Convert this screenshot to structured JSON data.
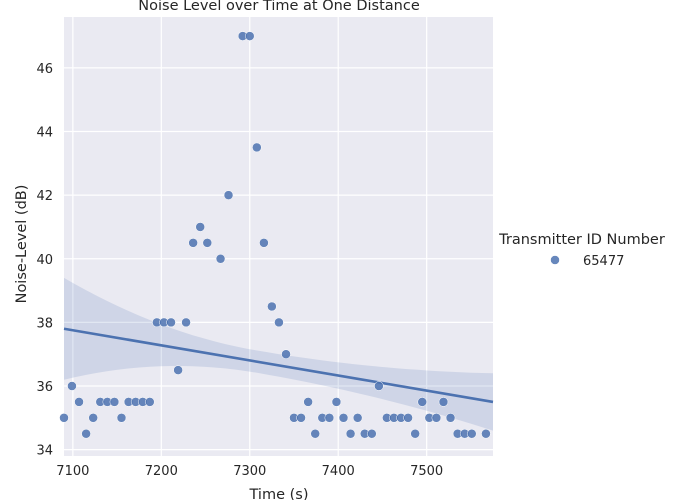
{
  "chart_data": {
    "type": "scatter",
    "title": "Noise Level over Time at One Distance",
    "xlabel": "Time (s)",
    "ylabel": "Noise-Level (dB)",
    "xlim": [
      7090,
      7575
    ],
    "ylim": [
      33.8,
      47.6
    ],
    "xticks": [
      7100,
      7200,
      7300,
      7400,
      7500
    ],
    "yticks": [
      34,
      36,
      38,
      40,
      42,
      44,
      46
    ],
    "grid": true,
    "legend": {
      "title": "Transmitter ID Number",
      "placement": "right",
      "entries": [
        "65477"
      ]
    },
    "series": [
      {
        "name": "65477",
        "color": "#4c72b0",
        "x": [
          7090,
          7099,
          7107,
          7115,
          7123,
          7131,
          7139,
          7147,
          7155,
          7163,
          7171,
          7179,
          7187,
          7195,
          7203,
          7211,
          7219,
          7228,
          7236,
          7244,
          7252,
          7267,
          7276,
          7292,
          7300,
          7308,
          7316,
          7325,
          7333,
          7341,
          7350,
          7358,
          7366,
          7374,
          7382,
          7390,
          7398,
          7406,
          7414,
          7422,
          7430,
          7438,
          7446,
          7455,
          7463,
          7471,
          7479,
          7487,
          7495,
          7503,
          7511,
          7519,
          7527,
          7535,
          7543,
          7551,
          7567
        ],
        "y": [
          35.0,
          36.0,
          35.5,
          34.5,
          35.0,
          35.5,
          35.5,
          35.5,
          35.0,
          35.5,
          35.5,
          35.5,
          35.5,
          38.0,
          38.0,
          38.0,
          36.5,
          38.0,
          40.5,
          41.0,
          40.5,
          40.0,
          42.0,
          47.0,
          47.0,
          43.5,
          40.5,
          38.5,
          38.0,
          37.0,
          35.0,
          35.0,
          35.5,
          34.5,
          35.0,
          35.0,
          35.5,
          35.0,
          34.5,
          35.0,
          34.5,
          34.5,
          36.0,
          35.0,
          35.0,
          35.0,
          35.0,
          34.5,
          35.5,
          35.0,
          35.0,
          35.5,
          35.0,
          34.5,
          34.5,
          34.5,
          34.5
        ]
      }
    ],
    "regression": {
      "x": [
        7090,
        7575
      ],
      "y": [
        37.8,
        35.5
      ],
      "ci_upper": [
        39.4,
        36.4
      ],
      "ci_lower": [
        36.7,
        34.6
      ],
      "color": "#4c72b0"
    }
  }
}
